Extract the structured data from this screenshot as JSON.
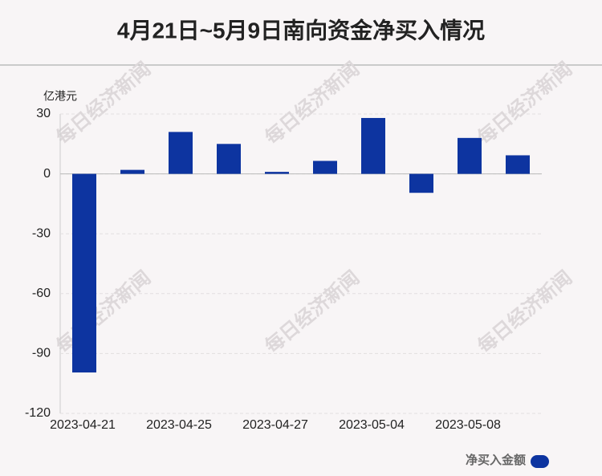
{
  "chart_data": {
    "type": "bar",
    "title": "4月21日~5月9日南向资金净买入情况",
    "y_unit": "亿港元",
    "watermark": "每日经济新闻",
    "categories": [
      "2023-04-21",
      null,
      "2023-04-25",
      null,
      "2023-04-27",
      null,
      "2023-05-04",
      null,
      "2023-05-08",
      null
    ],
    "series": [
      {
        "name": "净买入金额",
        "color": "#0d34a0",
        "values": [
          -99.5,
          2,
          21,
          15,
          1,
          6.5,
          28,
          -9.5,
          18,
          9.3
        ]
      }
    ],
    "ylim": [
      -120,
      30
    ],
    "yticks": [
      -120,
      -90,
      -60,
      -30,
      0,
      30
    ],
    "grid": true,
    "legend": "bottom-right"
  }
}
